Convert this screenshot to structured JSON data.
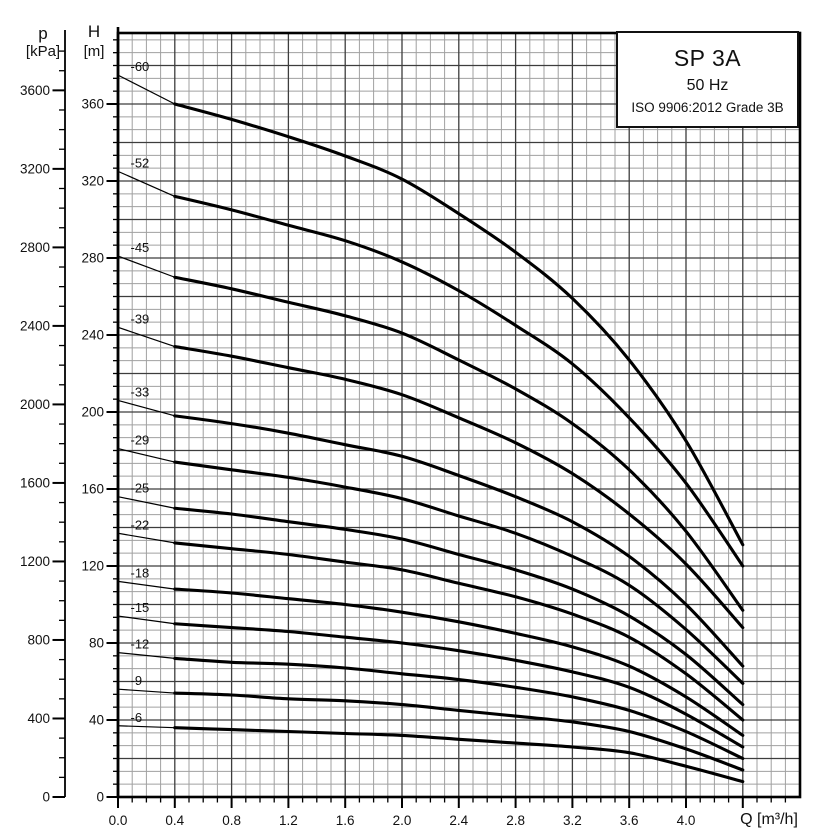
{
  "title_box": {
    "model": "SP 3A",
    "frequency": "50 Hz",
    "standard": "ISO 9906:2012 Grade 3B"
  },
  "axis_titles": {
    "pressure_symbol": "p",
    "pressure_unit": "[kPa]",
    "head_symbol": "H",
    "head_unit": "[m]",
    "flow_label": "Q [m³/h]"
  },
  "chart_data": {
    "type": "line",
    "title": "SP 3A 50 Hz submersible pump performance curves (Q-H)",
    "xlabel": "Q [m³/h]",
    "ylabel": "H [m]",
    "ylabel_secondary": "p [kPa]",
    "xlim": [
      0,
      4.8
    ],
    "ylim": [
      0,
      397
    ],
    "ylim_pressure_kPa": [
      0,
      3900
    ],
    "grid": {
      "x_minor_step": 0.1,
      "x_major_step": 0.4,
      "y_minor_step": 6.667,
      "y_major_step": 20
    },
    "legend_position": "inline-labels-left",
    "x_major_tick_labels": [
      "0.0",
      "0.4",
      "0.8",
      "1.2",
      "1.6",
      "2.0",
      "2.4",
      "2.8",
      "3.2",
      "3.6",
      "4.0"
    ],
    "h_major_ticks": [
      0,
      40,
      80,
      120,
      160,
      200,
      240,
      280,
      320,
      360
    ],
    "p_major_ticks": [
      0,
      400,
      800,
      1200,
      1600,
      2000,
      2400,
      2800,
      3200,
      3600
    ],
    "bold_range_q": [
      0.4,
      4.4
    ],
    "x": [
      0,
      0.4,
      0.8,
      1.2,
      1.6,
      2.0,
      2.4,
      2.8,
      3.2,
      3.6,
      4.0,
      4.4
    ],
    "series": [
      {
        "name": "-60",
        "values": [
          375,
          360,
          352,
          343,
          333,
          321,
          303,
          283,
          259,
          227,
          185,
          131
        ]
      },
      {
        "name": "-52",
        "values": [
          325,
          312,
          305,
          297,
          289,
          278,
          263,
          245,
          225,
          197,
          163,
          120
        ]
      },
      {
        "name": "-45",
        "values": [
          281,
          270,
          264,
          257,
          250,
          241,
          227,
          212,
          194,
          170,
          138,
          97
        ]
      },
      {
        "name": "-39",
        "values": [
          244,
          234,
          229,
          223,
          217,
          209,
          197,
          184,
          168,
          147,
          121,
          88
        ]
      },
      {
        "name": "-33",
        "values": [
          206,
          198,
          194,
          189,
          183,
          177,
          167,
          156,
          143,
          125,
          100,
          68
        ]
      },
      {
        "name": "-29",
        "values": [
          181,
          174,
          170,
          166,
          161,
          155,
          146,
          137,
          125,
          110,
          87,
          59
        ]
      },
      {
        "name": "-25",
        "values": [
          156,
          150,
          147,
          143,
          139,
          134,
          126,
          118,
          108,
          94,
          74,
          48
        ]
      },
      {
        "name": "-22",
        "values": [
          137,
          132,
          129,
          126,
          122,
          118,
          111,
          104,
          95,
          83,
          64,
          40
        ]
      },
      {
        "name": "-18",
        "values": [
          112,
          108,
          106,
          103,
          100,
          96,
          91,
          85,
          78,
          68,
          52,
          32
        ]
      },
      {
        "name": "-15",
        "values": [
          94,
          90,
          88,
          86,
          83,
          80,
          76,
          71,
          65,
          57,
          43,
          26
        ]
      },
      {
        "name": "-12",
        "values": [
          75,
          72,
          70,
          69,
          67,
          64,
          61,
          57,
          52,
          45,
          34,
          20
        ]
      },
      {
        "name": "-9",
        "values": [
          56,
          54,
          53,
          51,
          50,
          48,
          45,
          42,
          39,
          34,
          25,
          14
        ]
      },
      {
        "name": "-6",
        "values": [
          37,
          36,
          35,
          34,
          33,
          32,
          30,
          28,
          26,
          23,
          16,
          8
        ]
      }
    ]
  }
}
